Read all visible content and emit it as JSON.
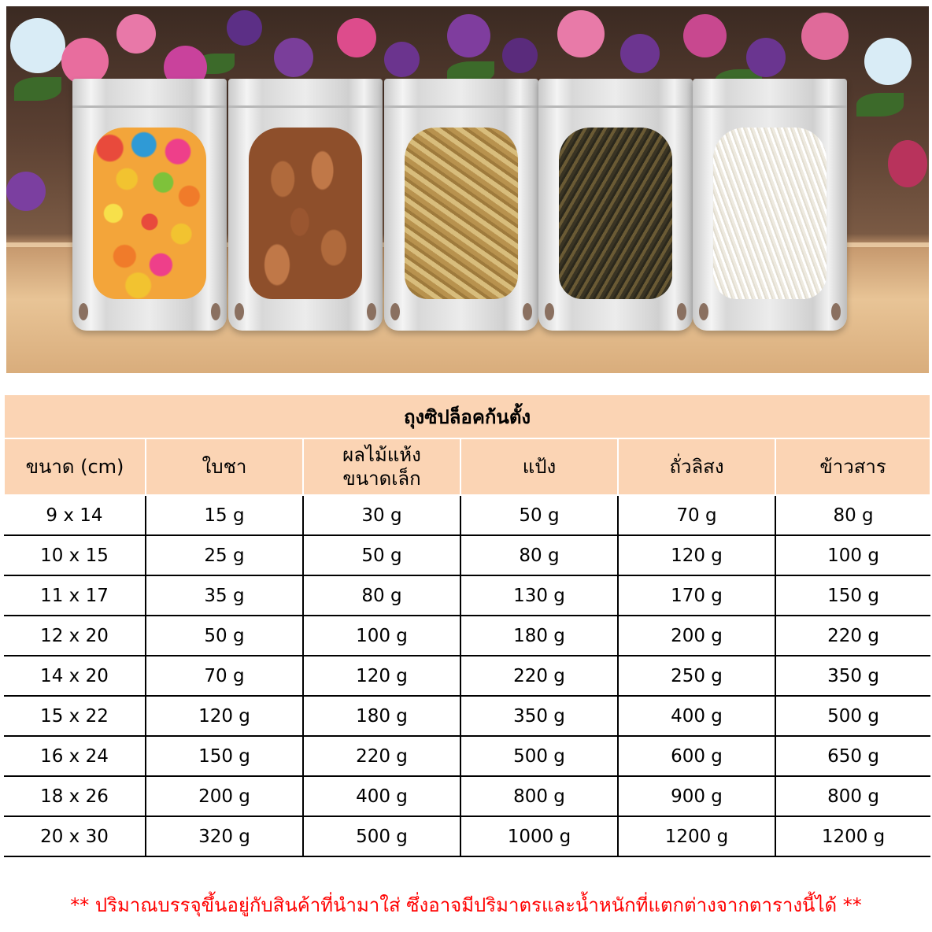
{
  "photo": {
    "bags": [
      "jelly-bean-bag",
      "nut-bag",
      "dried-flower-bag",
      "tea-leaf-bag",
      "rice-bag"
    ]
  },
  "table": {
    "title": "ถุงซิปล็อคก้นตั้ง",
    "headers": [
      "ขนาด (cm)",
      "ใบชา",
      "ผลไม้แห้ง\nขนาดเล็ก",
      "แป้ง",
      "ถั่วลิสง",
      "ข้าวสาร"
    ],
    "rows": [
      [
        "9 x 14",
        "15 g",
        "30 g",
        "50 g",
        "70 g",
        "80 g"
      ],
      [
        "10 x 15",
        "25 g",
        "50 g",
        "80 g",
        "120 g",
        "100 g"
      ],
      [
        "11 x 17",
        "35 g",
        "80 g",
        "130 g",
        "170 g",
        "150 g"
      ],
      [
        "12 x 20",
        "50 g",
        "100 g",
        "180 g",
        "200 g",
        "220 g"
      ],
      [
        "14 x 20",
        "70 g",
        "120 g",
        "220 g",
        "250 g",
        "350 g"
      ],
      [
        "15 x 22",
        "120 g",
        "180 g",
        "350 g",
        "400 g",
        "500 g"
      ],
      [
        "16 x 24",
        "150 g",
        "220 g",
        "500 g",
        "600 g",
        "650 g"
      ],
      [
        "18 x 26",
        "200 g",
        "400 g",
        "800 g",
        "900 g",
        "800 g"
      ],
      [
        "20 x 30",
        "320 g",
        "500 g",
        "1000 g",
        "1200 g",
        "1200 g"
      ]
    ]
  },
  "note": "** ปริมาณบรรจุขึ้นอยู่กับสินค้าที่นำมาใส่ ซึ่งอาจมีปริมาตรและน้ำหนักที่แตกต่างจากตารางนี้ได้ **",
  "colors": {
    "header_bg": "#fbd4b4",
    "note_text": "#ff0000"
  }
}
